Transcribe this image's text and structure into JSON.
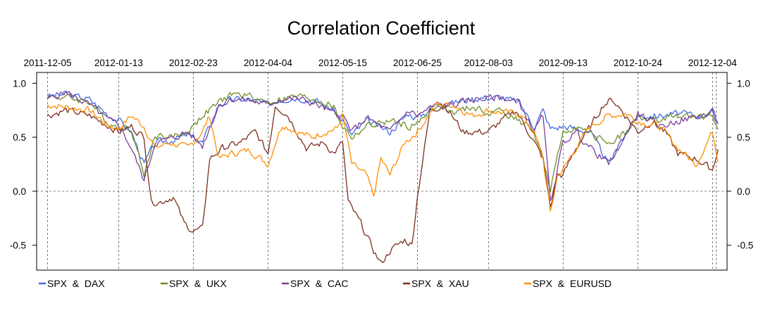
{
  "chart_data": {
    "type": "line",
    "title": "Correlation Coefficient",
    "xlabel": "",
    "ylabel": "",
    "x_tick_labels": [
      "2011-12-05",
      "2012-01-13",
      "2012-02-23",
      "2012-04-04",
      "2012-05-15",
      "2012-06-25",
      "2012-08-03",
      "2012-09-13",
      "2012-10-24",
      "2012-12-04"
    ],
    "x_range": [
      "2011-11-29",
      "2012-12-12"
    ],
    "ylim": [
      -0.73,
      1.1
    ],
    "y_ticks": [
      1.0,
      0.5,
      0.0,
      -0.5
    ],
    "y_tick_labels": [
      "1.0",
      "0.5",
      "0.0",
      "-0.5"
    ],
    "y_axis_sides": "both",
    "vertical_dashed_lines_at": [
      "2011-12-05",
      "2012-01-13",
      "2012-02-23",
      "2012-04-04",
      "2012-05-15",
      "2012-06-25",
      "2012-08-03",
      "2012-09-13",
      "2012-10-24",
      "2012-12-04",
      "2012-12-06"
    ],
    "horizontal_dashed_line_at": 0.0,
    "legend_position": "bottom",
    "series": [
      {
        "name": "SPX  &  DAX",
        "color": "#4169E1",
        "points": [
          [
            "2011-12-05",
            0.88
          ],
          [
            "2011-12-15",
            0.9
          ],
          [
            "2011-12-28",
            0.85
          ],
          [
            "2012-01-08",
            0.7
          ],
          [
            "2012-01-13",
            0.66
          ],
          [
            "2012-01-20",
            0.55
          ],
          [
            "2012-01-27",
            0.25
          ],
          [
            "2012-02-02",
            0.45
          ],
          [
            "2012-02-10",
            0.47
          ],
          [
            "2012-02-20",
            0.52
          ],
          [
            "2012-02-28",
            0.45
          ],
          [
            "2012-03-08",
            0.8
          ],
          [
            "2012-03-15",
            0.85
          ],
          [
            "2012-03-25",
            0.85
          ],
          [
            "2012-04-04",
            0.8
          ],
          [
            "2012-04-10",
            0.85
          ],
          [
            "2012-04-20",
            0.87
          ],
          [
            "2012-05-01",
            0.83
          ],
          [
            "2012-05-10",
            0.75
          ],
          [
            "2012-05-15",
            0.65
          ],
          [
            "2012-05-20",
            0.52
          ],
          [
            "2012-05-28",
            0.65
          ],
          [
            "2012-06-10",
            0.55
          ],
          [
            "2012-06-20",
            0.72
          ],
          [
            "2012-06-25",
            0.68
          ],
          [
            "2012-07-05",
            0.8
          ],
          [
            "2012-07-15",
            0.82
          ],
          [
            "2012-07-25",
            0.86
          ],
          [
            "2012-08-03",
            0.87
          ],
          [
            "2012-08-10",
            0.87
          ],
          [
            "2012-08-20",
            0.82
          ],
          [
            "2012-08-28",
            0.6
          ],
          [
            "2012-09-02",
            0.75
          ],
          [
            "2012-09-06",
            0.58
          ],
          [
            "2012-09-13",
            0.6
          ],
          [
            "2012-09-20",
            0.58
          ],
          [
            "2012-09-28",
            0.55
          ],
          [
            "2012-10-08",
            0.25
          ],
          [
            "2012-10-18",
            0.55
          ],
          [
            "2012-10-24",
            0.7
          ],
          [
            "2012-11-05",
            0.7
          ],
          [
            "2012-11-15",
            0.72
          ],
          [
            "2012-11-28",
            0.7
          ],
          [
            "2012-12-04",
            0.74
          ],
          [
            "2012-12-07",
            0.62
          ]
        ]
      },
      {
        "name": "SPX  &  UKX",
        "color": "#6B8E23",
        "points": [
          [
            "2011-12-05",
            0.88
          ],
          [
            "2011-12-15",
            0.87
          ],
          [
            "2011-12-28",
            0.83
          ],
          [
            "2012-01-08",
            0.62
          ],
          [
            "2012-01-13",
            0.6
          ],
          [
            "2012-01-20",
            0.58
          ],
          [
            "2012-01-27",
            0.15
          ],
          [
            "2012-02-02",
            0.52
          ],
          [
            "2012-02-10",
            0.5
          ],
          [
            "2012-02-20",
            0.55
          ],
          [
            "2012-02-28",
            0.7
          ],
          [
            "2012-03-08",
            0.82
          ],
          [
            "2012-03-15",
            0.9
          ],
          [
            "2012-03-25",
            0.88
          ],
          [
            "2012-04-04",
            0.82
          ],
          [
            "2012-04-10",
            0.85
          ],
          [
            "2012-04-20",
            0.88
          ],
          [
            "2012-05-01",
            0.85
          ],
          [
            "2012-05-10",
            0.78
          ],
          [
            "2012-05-15",
            0.6
          ],
          [
            "2012-05-20",
            0.5
          ],
          [
            "2012-05-28",
            0.6
          ],
          [
            "2012-06-10",
            0.65
          ],
          [
            "2012-06-20",
            0.6
          ],
          [
            "2012-06-25",
            0.62
          ],
          [
            "2012-07-05",
            0.8
          ],
          [
            "2012-07-15",
            0.72
          ],
          [
            "2012-07-25",
            0.78
          ],
          [
            "2012-08-03",
            0.72
          ],
          [
            "2012-08-10",
            0.75
          ],
          [
            "2012-08-20",
            0.65
          ],
          [
            "2012-08-28",
            0.55
          ],
          [
            "2012-09-02",
            0.3
          ],
          [
            "2012-09-06",
            0.0
          ],
          [
            "2012-09-13",
            0.55
          ],
          [
            "2012-09-20",
            0.6
          ],
          [
            "2012-09-28",
            0.52
          ],
          [
            "2012-10-08",
            0.45
          ],
          [
            "2012-10-18",
            0.55
          ],
          [
            "2012-10-24",
            0.68
          ],
          [
            "2012-11-05",
            0.65
          ],
          [
            "2012-11-15",
            0.7
          ],
          [
            "2012-11-28",
            0.68
          ],
          [
            "2012-12-04",
            0.7
          ],
          [
            "2012-12-07",
            0.6
          ]
        ]
      },
      {
        "name": "SPX  &  CAC",
        "color": "#7B3F99",
        "points": [
          [
            "2011-12-05",
            0.85
          ],
          [
            "2011-12-15",
            0.92
          ],
          [
            "2011-12-28",
            0.8
          ],
          [
            "2012-01-08",
            0.65
          ],
          [
            "2012-01-13",
            0.62
          ],
          [
            "2012-01-20",
            0.4
          ],
          [
            "2012-01-27",
            0.1
          ],
          [
            "2012-02-02",
            0.45
          ],
          [
            "2012-02-10",
            0.48
          ],
          [
            "2012-02-20",
            0.55
          ],
          [
            "2012-02-28",
            0.42
          ],
          [
            "2012-03-08",
            0.8
          ],
          [
            "2012-03-15",
            0.85
          ],
          [
            "2012-03-25",
            0.84
          ],
          [
            "2012-04-04",
            0.8
          ],
          [
            "2012-04-10",
            0.85
          ],
          [
            "2012-04-20",
            0.86
          ],
          [
            "2012-05-01",
            0.8
          ],
          [
            "2012-05-10",
            0.72
          ],
          [
            "2012-05-15",
            0.7
          ],
          [
            "2012-05-20",
            0.55
          ],
          [
            "2012-05-28",
            0.68
          ],
          [
            "2012-06-10",
            0.55
          ],
          [
            "2012-06-20",
            0.75
          ],
          [
            "2012-06-25",
            0.7
          ],
          [
            "2012-07-05",
            0.8
          ],
          [
            "2012-07-15",
            0.8
          ],
          [
            "2012-07-25",
            0.85
          ],
          [
            "2012-08-03",
            0.86
          ],
          [
            "2012-08-10",
            0.87
          ],
          [
            "2012-08-20",
            0.82
          ],
          [
            "2012-08-28",
            0.55
          ],
          [
            "2012-09-02",
            0.7
          ],
          [
            "2012-09-06",
            -0.1
          ],
          [
            "2012-09-13",
            0.45
          ],
          [
            "2012-09-20",
            0.55
          ],
          [
            "2012-09-28",
            0.4
          ],
          [
            "2012-10-08",
            0.25
          ],
          [
            "2012-10-18",
            0.55
          ],
          [
            "2012-10-24",
            0.72
          ],
          [
            "2012-11-05",
            0.6
          ],
          [
            "2012-11-15",
            0.65
          ],
          [
            "2012-11-28",
            0.7
          ],
          [
            "2012-12-04",
            0.72
          ],
          [
            "2012-12-07",
            0.63
          ]
        ]
      },
      {
        "name": "SPX  &  XAU",
        "color": "#7B2E1E",
        "points": [
          [
            "2011-12-05",
            0.7
          ],
          [
            "2011-12-15",
            0.75
          ],
          [
            "2011-12-28",
            0.7
          ],
          [
            "2012-01-08",
            0.6
          ],
          [
            "2012-01-13",
            0.55
          ],
          [
            "2012-01-20",
            0.6
          ],
          [
            "2012-01-27",
            0.5
          ],
          [
            "2012-01-31",
            -0.1
          ],
          [
            "2012-02-05",
            -0.1
          ],
          [
            "2012-02-12",
            -0.05
          ],
          [
            "2012-02-18",
            -0.3
          ],
          [
            "2012-02-23",
            -0.37
          ],
          [
            "2012-02-28",
            -0.35
          ],
          [
            "2012-03-03",
            0.3
          ],
          [
            "2012-03-10",
            0.4
          ],
          [
            "2012-03-20",
            0.45
          ],
          [
            "2012-03-28",
            0.55
          ],
          [
            "2012-04-04",
            0.35
          ],
          [
            "2012-04-08",
            0.8
          ],
          [
            "2012-04-15",
            0.7
          ],
          [
            "2012-04-25",
            0.4
          ],
          [
            "2012-05-05",
            0.45
          ],
          [
            "2012-05-10",
            0.35
          ],
          [
            "2012-05-15",
            0.45
          ],
          [
            "2012-05-18",
            -0.1
          ],
          [
            "2012-05-25",
            -0.3
          ],
          [
            "2012-06-01",
            -0.55
          ],
          [
            "2012-06-05",
            -0.67
          ],
          [
            "2012-06-10",
            -0.55
          ],
          [
            "2012-06-18",
            -0.45
          ],
          [
            "2012-06-22",
            -0.5
          ],
          [
            "2012-06-25",
            -0.05
          ],
          [
            "2012-06-28",
            0.3
          ],
          [
            "2012-07-02",
            0.75
          ],
          [
            "2012-07-10",
            0.8
          ],
          [
            "2012-07-20",
            0.55
          ],
          [
            "2012-08-03",
            0.55
          ],
          [
            "2012-08-10",
            0.65
          ],
          [
            "2012-08-18",
            0.75
          ],
          [
            "2012-08-25",
            0.55
          ],
          [
            "2012-09-02",
            0.3
          ],
          [
            "2012-09-06",
            -0.15
          ],
          [
            "2012-09-10",
            0.15
          ],
          [
            "2012-09-13",
            0.15
          ],
          [
            "2012-09-20",
            0.4
          ],
          [
            "2012-09-28",
            0.6
          ],
          [
            "2012-10-05",
            0.8
          ],
          [
            "2012-10-10",
            0.85
          ],
          [
            "2012-10-15",
            0.75
          ],
          [
            "2012-10-24",
            0.55
          ],
          [
            "2012-11-01",
            0.65
          ],
          [
            "2012-11-08",
            0.55
          ],
          [
            "2012-11-15",
            0.35
          ],
          [
            "2012-11-25",
            0.3
          ],
          [
            "2012-12-04",
            0.2
          ],
          [
            "2012-12-07",
            0.4
          ]
        ]
      },
      {
        "name": "SPX  &  EURUSD",
        "color": "#FF8C00",
        "points": [
          [
            "2011-12-05",
            0.8
          ],
          [
            "2011-12-15",
            0.78
          ],
          [
            "2011-12-28",
            0.75
          ],
          [
            "2012-01-08",
            0.6
          ],
          [
            "2012-01-13",
            0.58
          ],
          [
            "2012-01-20",
            0.7
          ],
          [
            "2012-01-27",
            0.6
          ],
          [
            "2012-02-02",
            0.4
          ],
          [
            "2012-02-10",
            0.45
          ],
          [
            "2012-02-20",
            0.4
          ],
          [
            "2012-02-28",
            0.55
          ],
          [
            "2012-03-03",
            0.7
          ],
          [
            "2012-03-08",
            0.3
          ],
          [
            "2012-03-15",
            0.35
          ],
          [
            "2012-03-25",
            0.38
          ],
          [
            "2012-04-04",
            0.25
          ],
          [
            "2012-04-08",
            0.45
          ],
          [
            "2012-04-12",
            0.62
          ],
          [
            "2012-04-20",
            0.55
          ],
          [
            "2012-04-28",
            0.5
          ],
          [
            "2012-05-05",
            0.55
          ],
          [
            "2012-05-12",
            0.58
          ],
          [
            "2012-05-15",
            0.7
          ],
          [
            "2012-05-20",
            0.25
          ],
          [
            "2012-05-28",
            0.15
          ],
          [
            "2012-06-01",
            -0.05
          ],
          [
            "2012-06-05",
            0.3
          ],
          [
            "2012-06-10",
            0.15
          ],
          [
            "2012-06-18",
            0.45
          ],
          [
            "2012-06-25",
            0.55
          ],
          [
            "2012-07-05",
            0.8
          ],
          [
            "2012-07-15",
            0.8
          ],
          [
            "2012-07-25",
            0.7
          ],
          [
            "2012-08-03",
            0.75
          ],
          [
            "2012-08-10",
            0.73
          ],
          [
            "2012-08-20",
            0.72
          ],
          [
            "2012-08-28",
            0.55
          ],
          [
            "2012-09-02",
            0.3
          ],
          [
            "2012-09-06",
            -0.2
          ],
          [
            "2012-09-10",
            0.15
          ],
          [
            "2012-09-13",
            0.2
          ],
          [
            "2012-09-20",
            0.4
          ],
          [
            "2012-09-28",
            0.6
          ],
          [
            "2012-10-08",
            0.7
          ],
          [
            "2012-10-18",
            0.72
          ],
          [
            "2012-10-24",
            0.65
          ],
          [
            "2012-11-05",
            0.6
          ],
          [
            "2012-11-15",
            0.4
          ],
          [
            "2012-11-25",
            0.25
          ],
          [
            "2012-12-04",
            0.55
          ],
          [
            "2012-12-07",
            0.3
          ]
        ]
      }
    ]
  }
}
